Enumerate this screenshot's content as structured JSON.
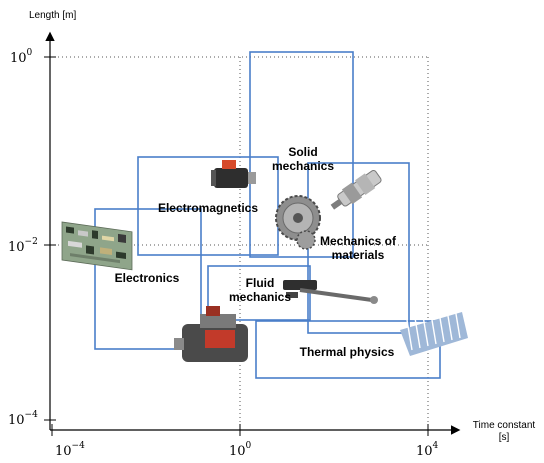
{
  "axes": {
    "y_title": "Length [m]",
    "x_title_line1": "Time constant",
    "x_title_line2": "[s]",
    "y_ticks": [
      {
        "base": "10",
        "exp": "0"
      },
      {
        "base": "10",
        "exp": "−2"
      },
      {
        "base": "10",
        "exp": "−4"
      }
    ],
    "x_ticks": [
      {
        "base": "10",
        "exp": "−4"
      },
      {
        "base": "10",
        "exp": "0"
      },
      {
        "base": "10",
        "exp": "4"
      }
    ]
  },
  "domains": {
    "solid_mechanics_line1": "Solid",
    "solid_mechanics_line2": "mechanics",
    "electromagnetics": "Electromagnetics",
    "mechanics_of_materials_line1": "Mechanics of",
    "mechanics_of_materials_line2": "materials",
    "electronics": "Electronics",
    "fluid_mechanics_line1": "Fluid",
    "fluid_mechanics_line2": "mechanics",
    "thermal_physics": "Thermal physics"
  },
  "colors": {
    "box_stroke": "#4a7ec9",
    "grid": "#555555"
  }
}
